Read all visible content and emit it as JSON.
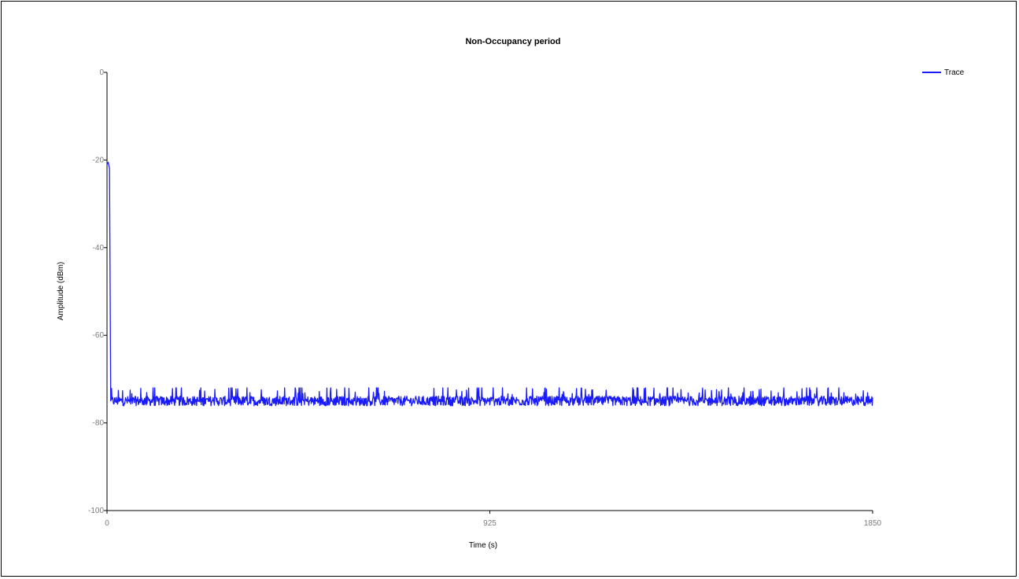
{
  "chart_data": {
    "type": "line",
    "title": "Non-Occupancy period",
    "xlabel": "Time (s)",
    "ylabel": "Amplitude (dBm)",
    "xlim": [
      0,
      1850
    ],
    "ylim": [
      -100,
      0
    ],
    "x_ticks": [
      "0",
      "925",
      "1850"
    ],
    "y_ticks": [
      "0",
      "-20",
      "-40",
      "-60",
      "-80",
      "-100"
    ],
    "grid": false,
    "legend": "top-right",
    "series": [
      {
        "name": "Trace",
        "color": "#1a1aff",
        "points": [
          {
            "x": 0,
            "y": -21
          },
          {
            "x": 3,
            "y": -20.5
          },
          {
            "x": 6,
            "y": -22
          },
          {
            "x": 9,
            "y": -75
          },
          {
            "x": 12,
            "y": -74.5
          },
          {
            "x": 925,
            "y": -74.8
          },
          {
            "x": 1850,
            "y": -75
          }
        ],
        "noise_floor": {
          "x_start": 10,
          "x_end": 1850,
          "y_mean": -75,
          "y_min": -76.5,
          "y_max": -72
        }
      }
    ]
  }
}
